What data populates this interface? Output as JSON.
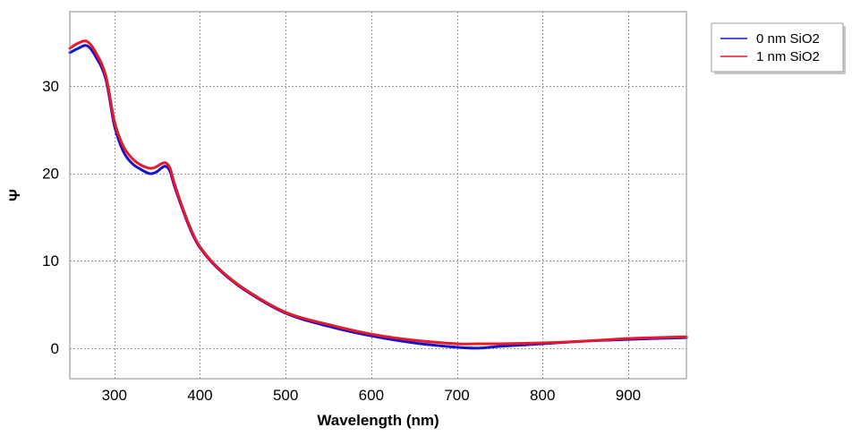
{
  "chart_data": {
    "type": "line",
    "title": "",
    "xlabel": "Wavelength (nm)",
    "ylabel": "Ψ",
    "xlim": [
      248,
      968
    ],
    "ylim": [
      -3.5,
      38.5
    ],
    "xticks": [
      300,
      400,
      500,
      600,
      700,
      800,
      900
    ],
    "yticks": [
      0,
      10,
      20,
      30
    ],
    "grid": true,
    "legend_position": "top-right-outside",
    "series": [
      {
        "name": "0 nm SiO2",
        "color": "#1414c8",
        "x": [
          248,
          258,
          268,
          278,
          290,
          300,
          310,
          320,
          330,
          340,
          345,
          350,
          355,
          360,
          365,
          370,
          380,
          390,
          400,
          420,
          450,
          500,
          550,
          600,
          650,
          700,
          725,
          750,
          800,
          850,
          900,
          968
        ],
        "y": [
          33.8,
          34.3,
          34.6,
          33.4,
          30.8,
          25.5,
          22.6,
          21.2,
          20.5,
          20.0,
          20.0,
          20.2,
          20.6,
          20.8,
          20.2,
          18.6,
          15.8,
          13.3,
          11.5,
          9.2,
          6.8,
          4.0,
          2.5,
          1.4,
          0.6,
          0.1,
          0.0,
          0.2,
          0.5,
          0.8,
          1.0,
          1.2
        ]
      },
      {
        "name": "1 nm SiO2",
        "color": "#e8192c",
        "x": [
          248,
          258,
          268,
          278,
          290,
          300,
          310,
          320,
          330,
          340,
          345,
          350,
          355,
          360,
          365,
          370,
          380,
          390,
          400,
          420,
          450,
          500,
          550,
          600,
          650,
          700,
          725,
          750,
          800,
          850,
          900,
          968
        ],
        "y": [
          34.3,
          34.9,
          35.1,
          33.9,
          31.2,
          26.0,
          23.2,
          21.8,
          21.0,
          20.6,
          20.6,
          20.8,
          21.1,
          21.2,
          20.6,
          18.9,
          16.0,
          13.5,
          11.6,
          9.3,
          6.9,
          4.1,
          2.7,
          1.6,
          0.9,
          0.5,
          0.5,
          0.5,
          0.6,
          0.8,
          1.1,
          1.3
        ]
      }
    ]
  }
}
